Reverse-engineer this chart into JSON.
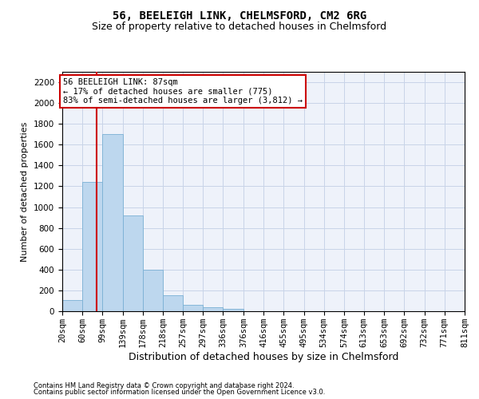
{
  "title1": "56, BEELEIGH LINK, CHELMSFORD, CM2 6RG",
  "title2": "Size of property relative to detached houses in Chelmsford",
  "xlabel": "Distribution of detached houses by size in Chelmsford",
  "ylabel": "Number of detached properties",
  "footer1": "Contains HM Land Registry data © Crown copyright and database right 2024.",
  "footer2": "Contains public sector information licensed under the Open Government Licence v3.0.",
  "bins": [
    20,
    60,
    99,
    139,
    178,
    218,
    257,
    297,
    336,
    376,
    416,
    455,
    495,
    534,
    574,
    613,
    653,
    692,
    732,
    771,
    811
  ],
  "bin_labels": [
    "20sqm",
    "60sqm",
    "99sqm",
    "139sqm",
    "178sqm",
    "218sqm",
    "257sqm",
    "297sqm",
    "336sqm",
    "376sqm",
    "416sqm",
    "455sqm",
    "495sqm",
    "534sqm",
    "574sqm",
    "613sqm",
    "653sqm",
    "692sqm",
    "732sqm",
    "771sqm",
    "811sqm"
  ],
  "values": [
    110,
    1240,
    1700,
    920,
    400,
    150,
    65,
    35,
    25,
    0,
    0,
    0,
    0,
    0,
    0,
    0,
    0,
    0,
    0,
    0
  ],
  "bar_color": "#bdd7ee",
  "bar_edge_color": "#7ab0d4",
  "grid_color": "#c8d4e8",
  "background_color": "#eef2fa",
  "property_size": 87,
  "vline_color": "#cc0000",
  "annotation_line1": "56 BEELEIGH LINK: 87sqm",
  "annotation_line2": "← 17% of detached houses are smaller (775)",
  "annotation_line3": "83% of semi-detached houses are larger (3,812) →",
  "annotation_box_color": "#cc0000",
  "ylim": [
    0,
    2300
  ],
  "yticks": [
    0,
    200,
    400,
    600,
    800,
    1000,
    1200,
    1400,
    1600,
    1800,
    2000,
    2200
  ],
  "title1_fontsize": 10,
  "title2_fontsize": 9,
  "xlabel_fontsize": 9,
  "ylabel_fontsize": 8,
  "tick_fontsize": 7.5,
  "annotation_fontsize": 7.5,
  "footer_fontsize": 6
}
